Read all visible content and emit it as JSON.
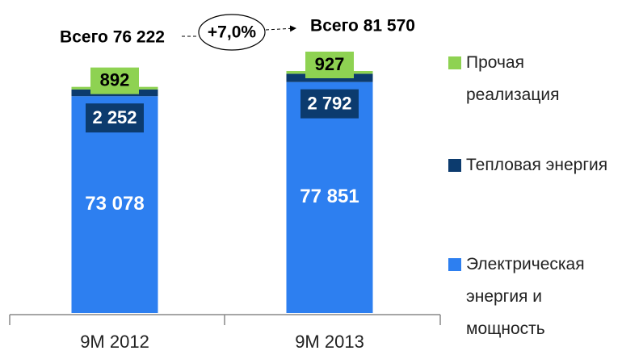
{
  "chart_data": {
    "type": "stacked_bar",
    "categories": [
      "9M 2012",
      "9M 2013"
    ],
    "series": [
      {
        "name": "Электрическая энергия и мощность",
        "color": "#2d7ff0",
        "values": [
          73078,
          77851
        ],
        "value_labels": [
          "73 078",
          "77 851"
        ]
      },
      {
        "name": "Тепловая энергия",
        "color": "#0c3b6e",
        "values": [
          2252,
          2792
        ],
        "value_labels": [
          "2 252",
          "2 792"
        ]
      },
      {
        "name": "Прочая реализация",
        "color": "#8ed252",
        "values": [
          892,
          927
        ],
        "value_labels": [
          "892",
          "927"
        ]
      }
    ],
    "annotations": [
      "Всего 76 222",
      "Всего 81 570",
      "+7,0%"
    ]
  }
}
